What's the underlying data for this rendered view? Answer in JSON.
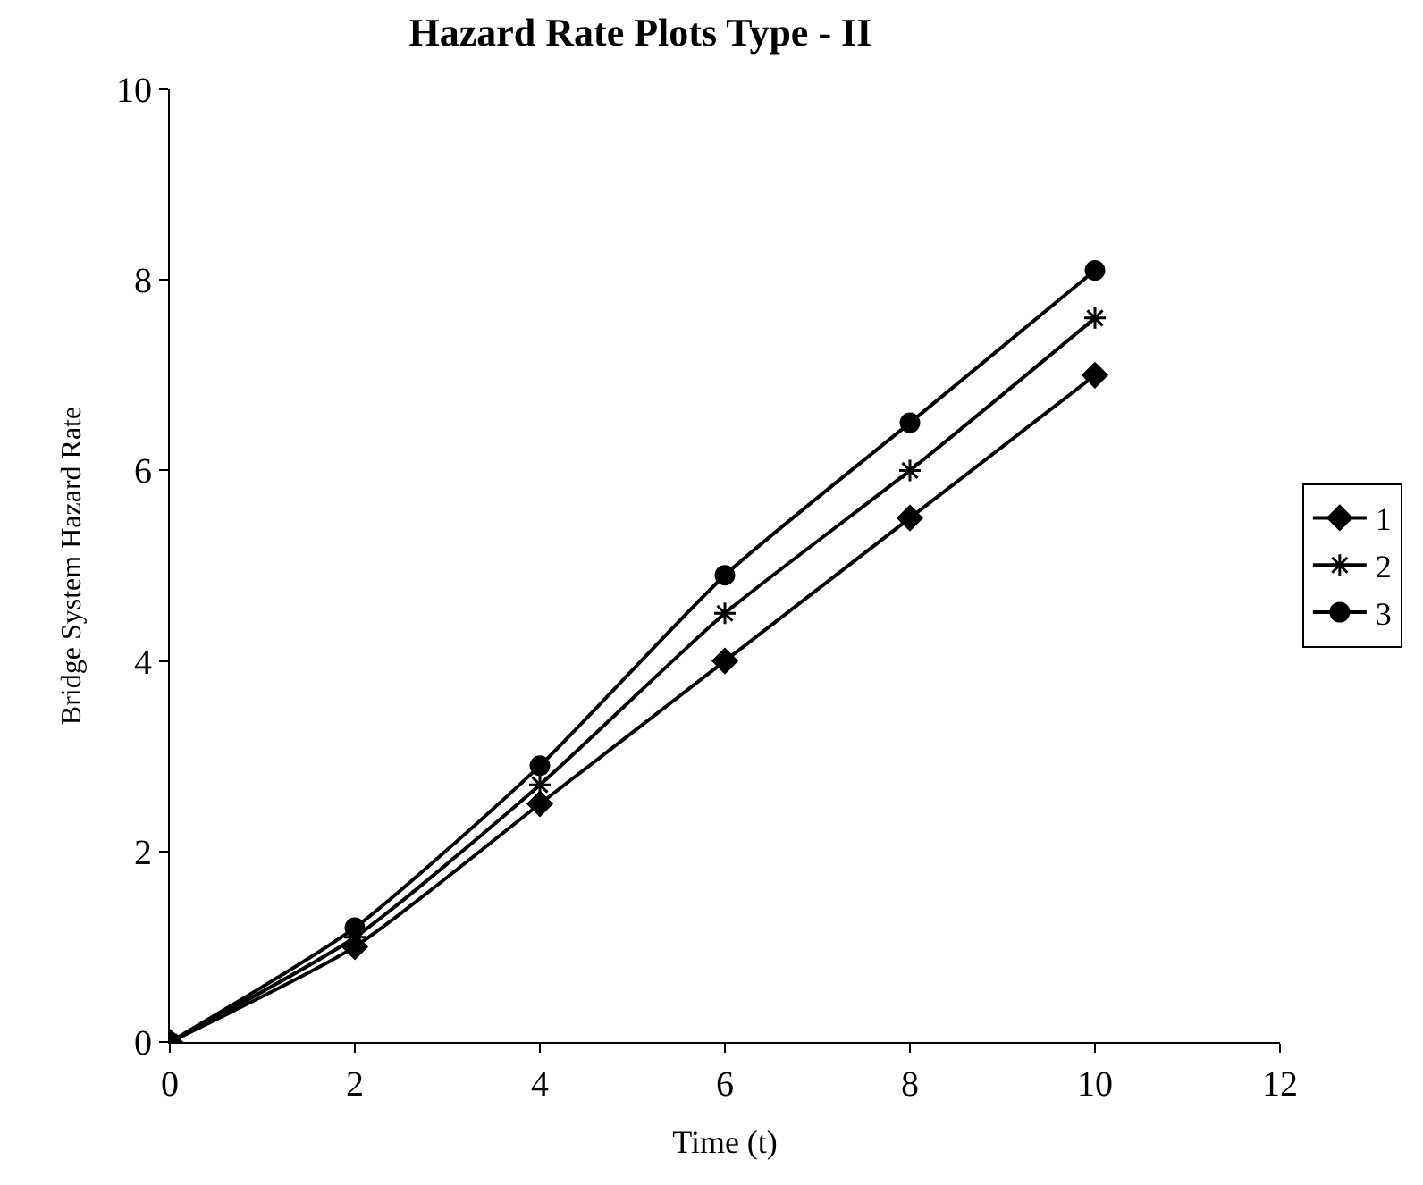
{
  "chart_data": {
    "type": "line",
    "title": "Hazard Rate Plots Type - II",
    "xlabel": "Time (t)",
    "ylabel": "Bridge System Hazard Rate",
    "x": [
      0,
      2,
      4,
      6,
      8,
      10
    ],
    "series": [
      {
        "name": "1",
        "color": "#000000",
        "marker": "diamond",
        "values": [
          0,
          1.0,
          2.5,
          4.0,
          5.5,
          7.0
        ]
      },
      {
        "name": "2",
        "color": "#000000",
        "marker": "cross",
        "values": [
          0,
          1.1,
          2.7,
          4.5,
          6.0,
          7.6
        ]
      },
      {
        "name": "3",
        "color": "#000000",
        "marker": "circle",
        "values": [
          0,
          1.2,
          2.9,
          4.9,
          6.5,
          8.1
        ]
      }
    ],
    "xlim": [
      0,
      12
    ],
    "xticks": [
      0,
      2,
      4,
      6,
      8,
      10,
      12
    ],
    "ylim": [
      0,
      10
    ],
    "yticks": [
      0,
      2,
      4,
      6,
      8,
      10
    ],
    "legend": "right",
    "line_style": "solid"
  }
}
